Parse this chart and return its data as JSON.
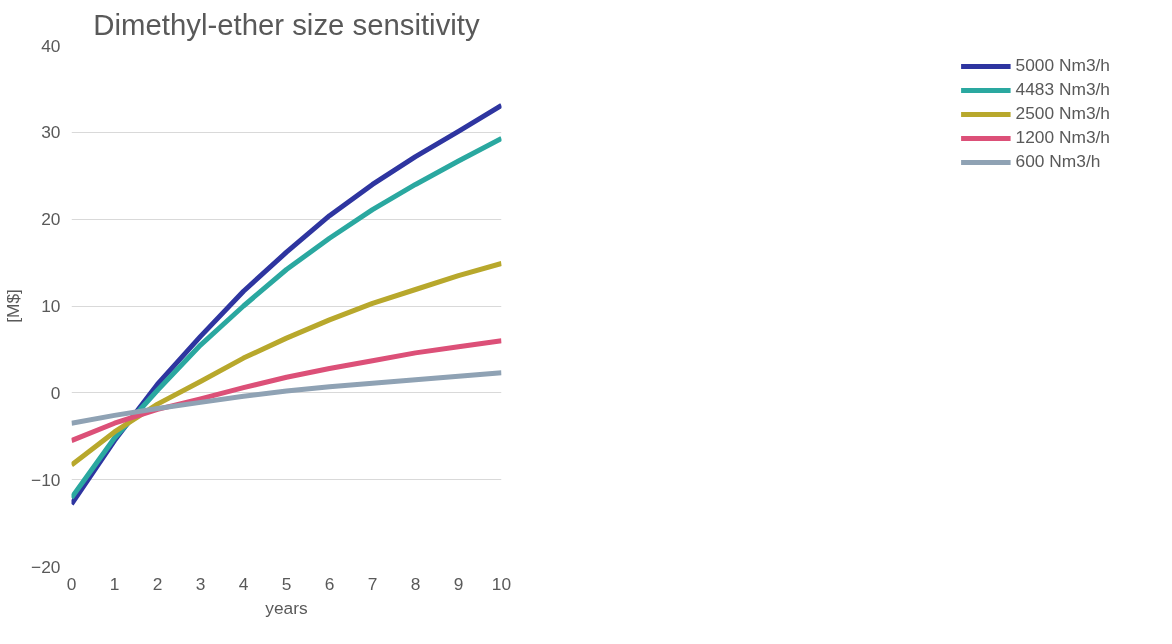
{
  "chart_data": {
    "type": "line",
    "title": "Dimethyl-ether size sensitivity",
    "xlabel": "years",
    "ylabel": "[M$]",
    "x": [
      0,
      1,
      2,
      3,
      4,
      5,
      6,
      7,
      8,
      9,
      10
    ],
    "xlim": [
      0,
      10
    ],
    "xticks": [
      0,
      1,
      2,
      3,
      4,
      5,
      6,
      7,
      8,
      9,
      10
    ],
    "ylim": [
      -20,
      40
    ],
    "yticks": [
      -20,
      -10,
      0,
      10,
      20,
      30,
      40
    ],
    "grid": "y",
    "legend": "right",
    "marker": "none",
    "line_style": "solid",
    "series": [
      {
        "name": "5000 Nm3/h",
        "color": "#2e35a0",
        "values": [
          -12.8,
          -5.5,
          1,
          6.5,
          11.7,
          16.2,
          20.4,
          24,
          27.2,
          30.1,
          33.1
        ]
      },
      {
        "name": "4483 Nm3/h",
        "color": "#2aa8a0",
        "values": [
          -12.1,
          -5.2,
          0.3,
          5.5,
          10,
          14.2,
          17.8,
          21.1,
          24,
          26.7,
          29.3
        ]
      },
      {
        "name": "2500 Nm3/h",
        "color": "#b8a82c",
        "values": [
          -8.3,
          -4.5,
          -1.3,
          1.3,
          4,
          6.3,
          8.4,
          10.3,
          11.9,
          13.5,
          14.9
        ]
      },
      {
        "name": "1200 Nm3/h",
        "color": "#dc5078",
        "values": [
          -5.5,
          -3.5,
          -1.9,
          -0.7,
          0.6,
          1.8,
          2.8,
          3.7,
          4.6,
          5.3,
          6.0
        ]
      },
      {
        "name": "600 Nm3/h",
        "color": "#8fa2b4",
        "values": [
          -3.5,
          -2.6,
          -1.8,
          -1.1,
          -0.4,
          0.2,
          0.7,
          1.1,
          1.5,
          1.9,
          2.3
        ]
      }
    ]
  }
}
